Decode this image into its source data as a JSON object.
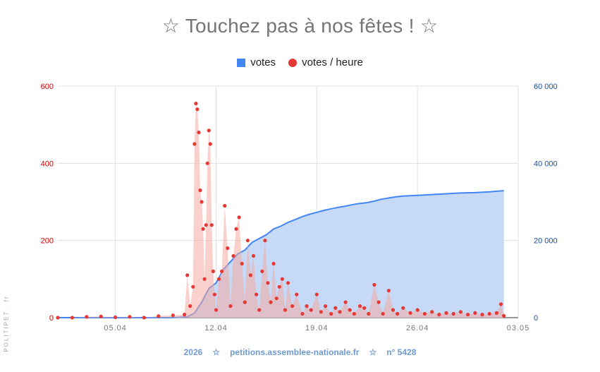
{
  "title": "☆  Touchez pas à nos fêtes !  ☆",
  "legend": {
    "votes": "votes",
    "votes_per_hour": "votes / heure"
  },
  "side_label": "POLITIPET . fr",
  "footer": {
    "year": "2026",
    "star1": "☆",
    "site": "petitions.assemblee-nationale.fr",
    "star2": "☆",
    "number": "n° 5428"
  },
  "colors": {
    "votes_fill": "#c6d9f7",
    "votes_line": "#4285f4",
    "hourly_dots": "#e53935",
    "hourly_fill": "#f4a9a3",
    "left_axis": "#cc0000",
    "right_axis": "#1a4fa3"
  },
  "chart_data": {
    "type": "combo",
    "x_tick_labels": [
      "05.04",
      "12.04",
      "19.04",
      "26.04",
      "03.05"
    ],
    "x_tick_days": [
      5,
      12,
      19,
      26,
      33
    ],
    "x_range_days": [
      1,
      33
    ],
    "left_axis": {
      "ylim": [
        0,
        600
      ],
      "ticks": [
        "0",
        "200",
        "400",
        "600"
      ]
    },
    "right_axis": {
      "ylim": [
        0,
        60000
      ],
      "ticks": [
        "0",
        "20 000",
        "40 000",
        "60 000"
      ]
    },
    "grid": true,
    "legend_position": "top",
    "series": [
      {
        "name": "votes",
        "type": "area",
        "axis": "right",
        "x_days": [
          1,
          9,
          10,
          10.5,
          11,
          11.5,
          12,
          12.5,
          13,
          13.5,
          14,
          14.5,
          15,
          15.5,
          16,
          16.5,
          17,
          17.5,
          18,
          18.5,
          19,
          19.5,
          20,
          20.5,
          21,
          21.5,
          22,
          22.5,
          23,
          23.5,
          24,
          24.5,
          25,
          25.5,
          26,
          26.5,
          27,
          28,
          29,
          30,
          31,
          32
        ],
        "values": [
          0,
          0,
          200,
          1200,
          4000,
          7600,
          9000,
          12500,
          14500,
          16500,
          17500,
          19500,
          20500,
          21500,
          23000,
          23700,
          24700,
          25400,
          26200,
          26800,
          27300,
          27800,
          28200,
          28600,
          28900,
          29300,
          29600,
          29800,
          30200,
          30700,
          31000,
          31300,
          31500,
          31600,
          31700,
          31800,
          31900,
          32100,
          32300,
          32400,
          32600,
          32900
        ]
      },
      {
        "name": "votes / heure",
        "type": "scatter+area",
        "axis": "left",
        "x_days": [
          1,
          2,
          3,
          4,
          5,
          6,
          7,
          8,
          9,
          9.8,
          10,
          10.2,
          10.4,
          10.5,
          10.6,
          10.7,
          10.8,
          10.9,
          11.0,
          11.1,
          11.2,
          11.3,
          11.4,
          11.5,
          11.6,
          11.7,
          11.8,
          11.9,
          12.0,
          12.2,
          12.4,
          12.6,
          12.8,
          13.0,
          13.2,
          13.4,
          13.6,
          13.8,
          14.0,
          14.2,
          14.4,
          14.6,
          14.8,
          15.0,
          15.2,
          15.4,
          15.6,
          15.8,
          16.0,
          16.2,
          16.4,
          16.6,
          16.8,
          17.0,
          17.3,
          17.6,
          18.0,
          18.3,
          18.6,
          19.0,
          19.3,
          19.6,
          20.0,
          20.3,
          20.6,
          21.0,
          21.3,
          21.6,
          22.0,
          22.3,
          22.6,
          23.0,
          23.3,
          23.6,
          24.0,
          24.3,
          24.6,
          25.0,
          25.5,
          26.0,
          26.5,
          27.0,
          27.5,
          28.0,
          28.5,
          29.0,
          29.5,
          30.0,
          30.5,
          31.0,
          31.5,
          31.8,
          32.0
        ],
        "values": [
          0,
          0,
          2,
          3,
          1,
          2,
          0,
          4,
          6,
          8,
          110,
          30,
          80,
          450,
          555,
          540,
          480,
          330,
          300,
          230,
          100,
          240,
          400,
          485,
          450,
          240,
          120,
          60,
          20,
          100,
          120,
          290,
          180,
          30,
          160,
          230,
          260,
          140,
          40,
          200,
          110,
          160,
          60,
          20,
          120,
          200,
          90,
          40,
          140,
          50,
          80,
          100,
          20,
          90,
          30,
          60,
          10,
          30,
          20,
          60,
          15,
          30,
          10,
          25,
          15,
          40,
          20,
          10,
          30,
          25,
          10,
          85,
          40,
          10,
          70,
          20,
          10,
          25,
          12,
          20,
          10,
          15,
          8,
          12,
          10,
          15,
          8,
          12,
          8,
          10,
          12,
          35,
          5
        ]
      }
    ]
  }
}
